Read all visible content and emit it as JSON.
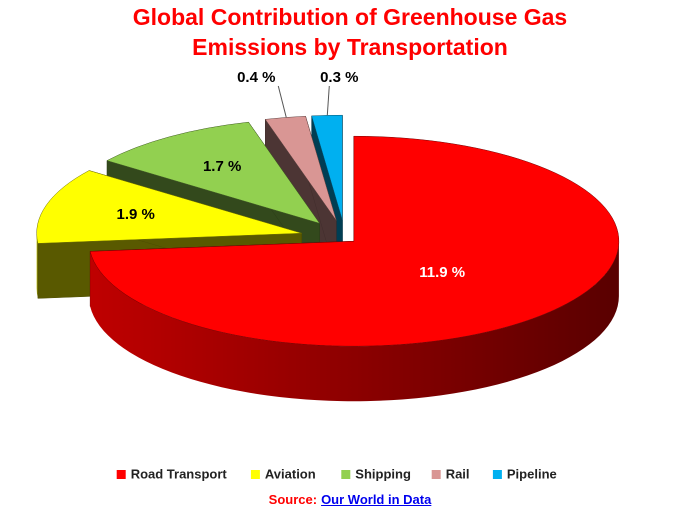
{
  "chart_data": {
    "type": "pie3d",
    "title": "Global Contribution of Greenhouse Gas Emissions by Transportation",
    "categories": [
      "Road Transport",
      "Aviation",
      "Shipping",
      "Rail",
      "Pipeline"
    ],
    "values": [
      11.9,
      1.9,
      1.7,
      0.4,
      0.3
    ],
    "value_labels": [
      "11.9 %",
      "1.9 %",
      "1.7 %",
      "0.4 %",
      "0.3 %"
    ],
    "colors": [
      "#ff0000",
      "#ffff00",
      "#92d050",
      "#d99694",
      "#00b0f0"
    ],
    "legend": "bottom"
  },
  "source": {
    "label": "Source:",
    "link": "Our World in Data"
  }
}
